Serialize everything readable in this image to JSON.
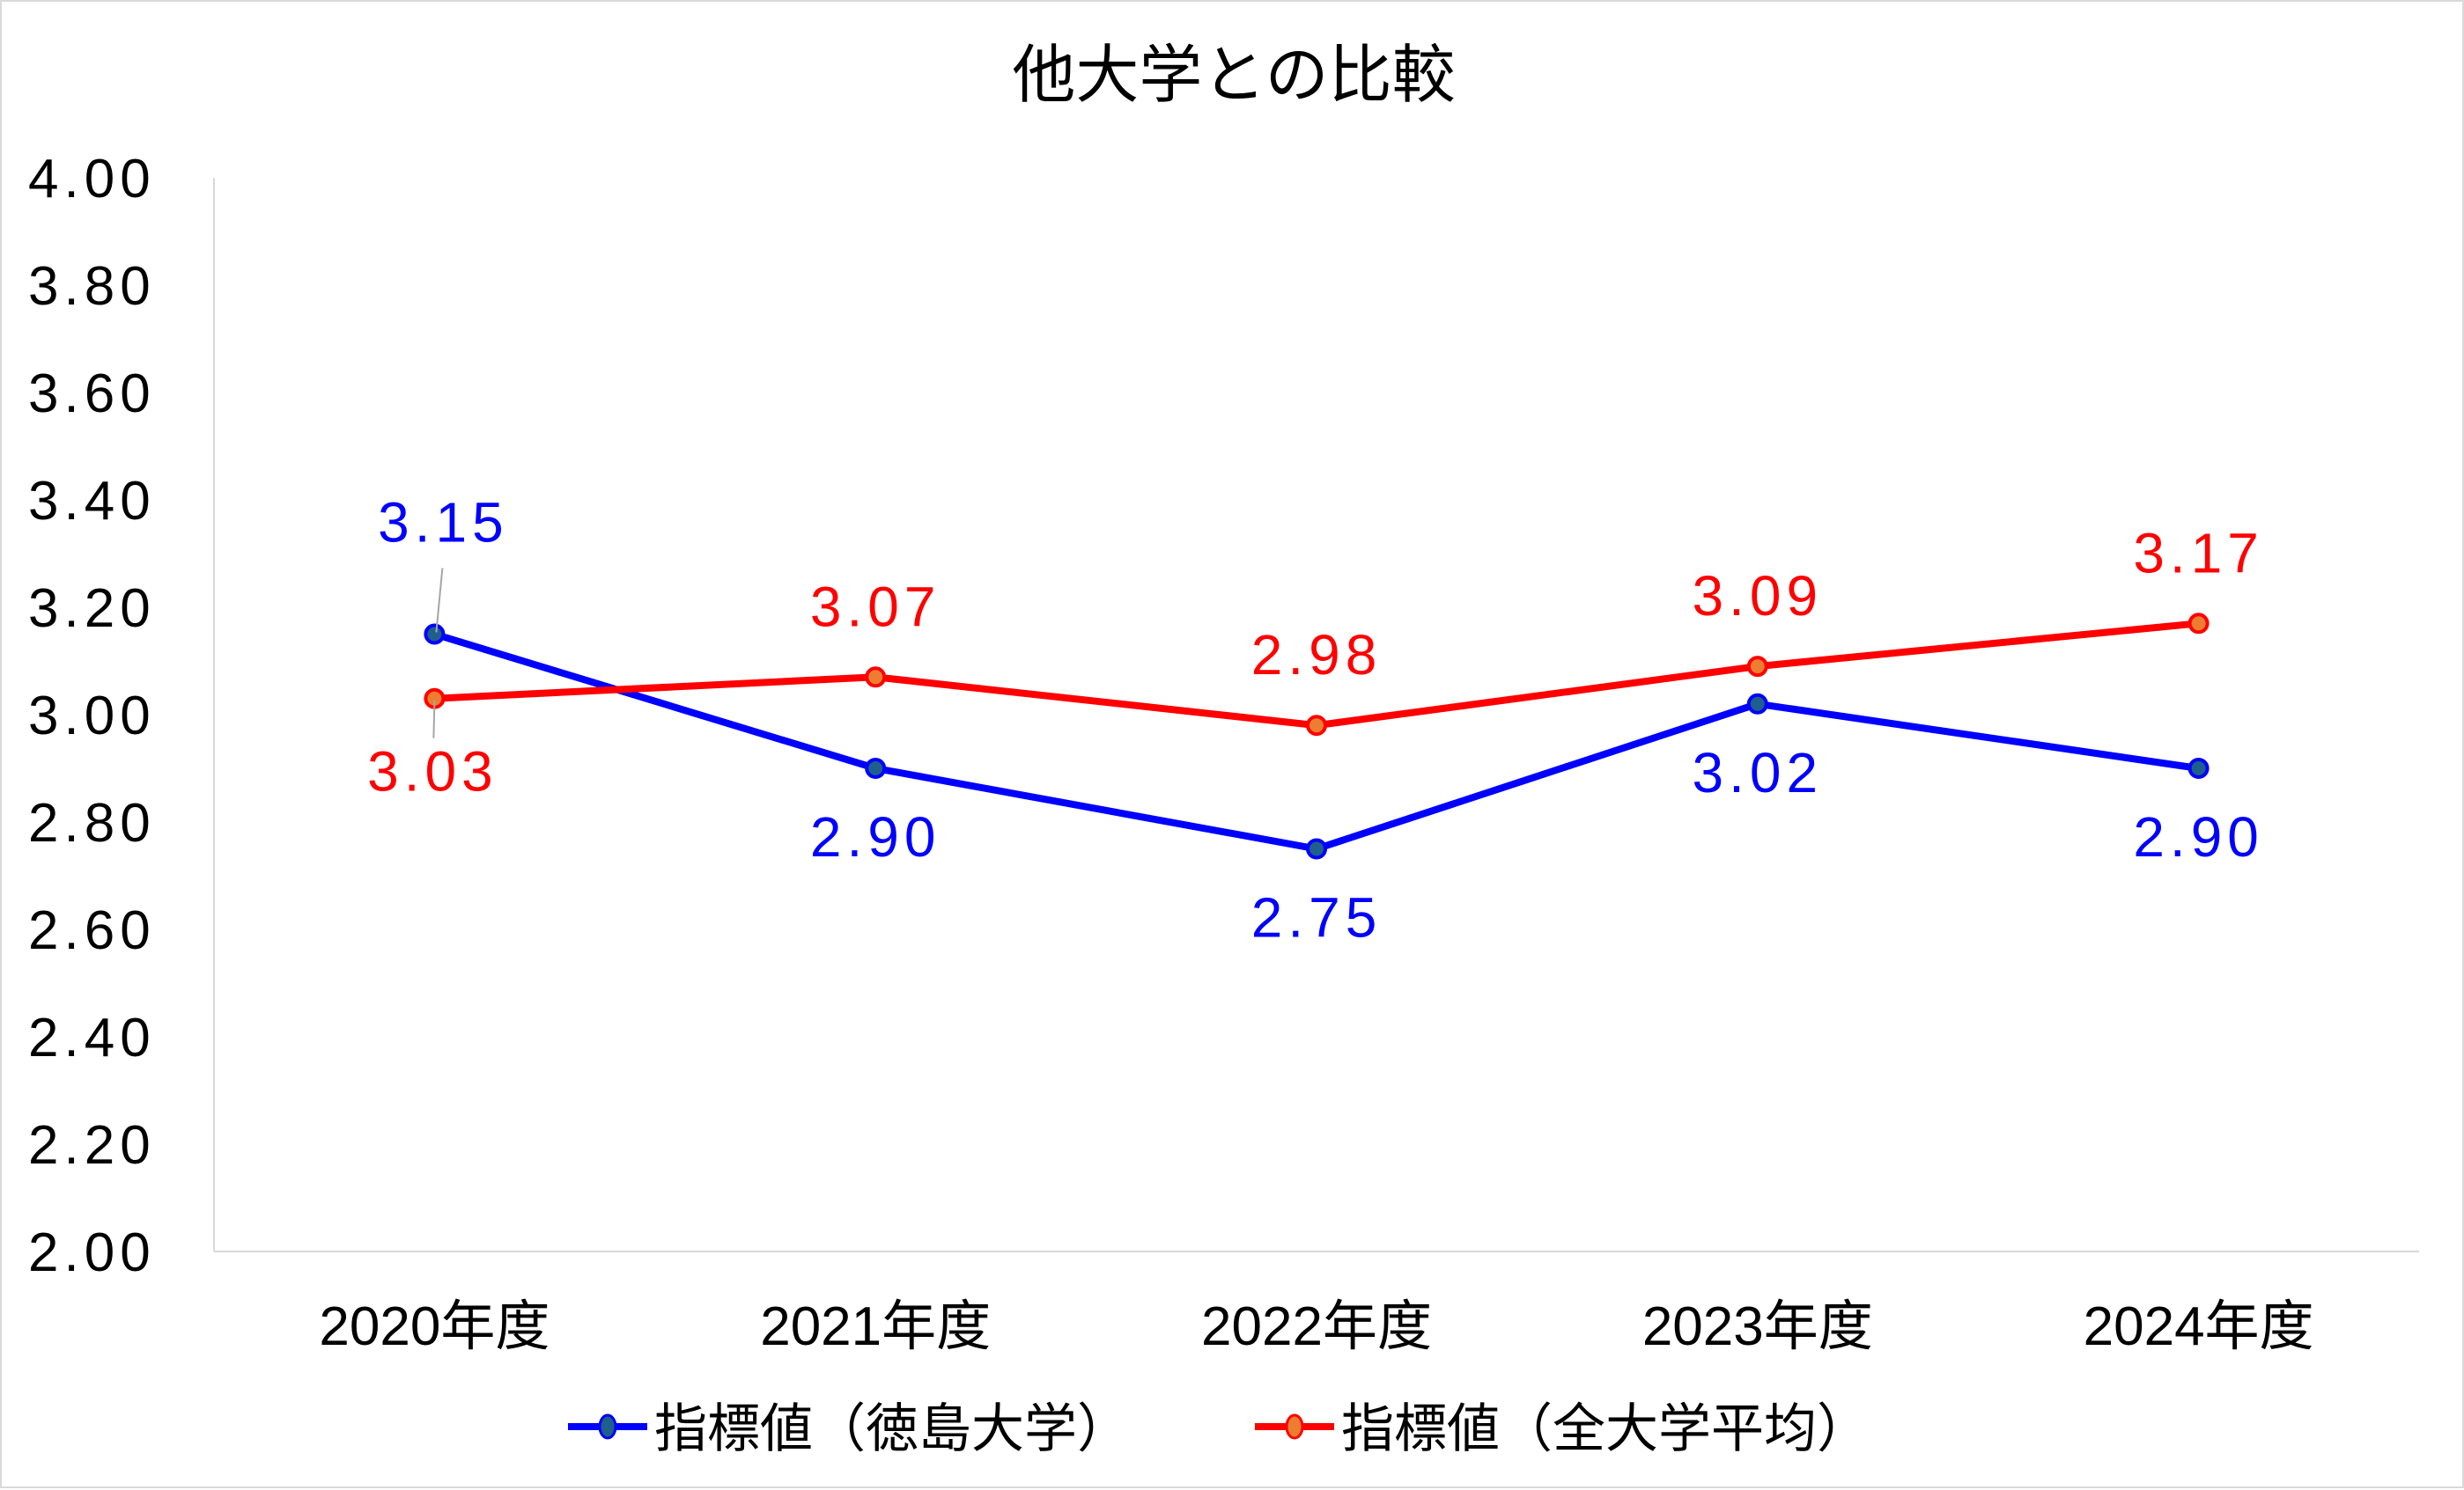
{
  "chart_data": {
    "type": "line",
    "title": "他大学との比較",
    "xlabel": "",
    "ylabel": "",
    "categories": [
      "2020年度",
      "2021年度",
      "2022年度",
      "2023年度",
      "2024年度"
    ],
    "ylim": [
      2.0,
      4.0
    ],
    "yticks": [
      "2.00",
      "2.20",
      "2.40",
      "2.60",
      "2.80",
      "3.00",
      "3.20",
      "3.40",
      "3.60",
      "3.80",
      "4.00"
    ],
    "grid": false,
    "legend_position": "bottom",
    "series": [
      {
        "name": "指標値（徳島大学）",
        "values": [
          3.15,
          2.9,
          2.75,
          3.02,
          2.9
        ],
        "labels": [
          "3.15",
          "2.90",
          "2.75",
          "3.02",
          "2.90"
        ],
        "color": "#0000ff",
        "marker_fill": "#1f5f8b",
        "label_side": [
          "above",
          "below",
          "below",
          "below",
          "below"
        ]
      },
      {
        "name": "指標値（全大学平均）",
        "values": [
          3.03,
          3.07,
          2.98,
          3.09,
          3.17
        ],
        "labels": [
          "3.03",
          "3.07",
          "2.98",
          "3.09",
          "3.17"
        ],
        "color": "#ff0000",
        "marker_fill": "#ed7d31",
        "label_side": [
          "below",
          "above",
          "above",
          "above",
          "above"
        ]
      }
    ]
  }
}
